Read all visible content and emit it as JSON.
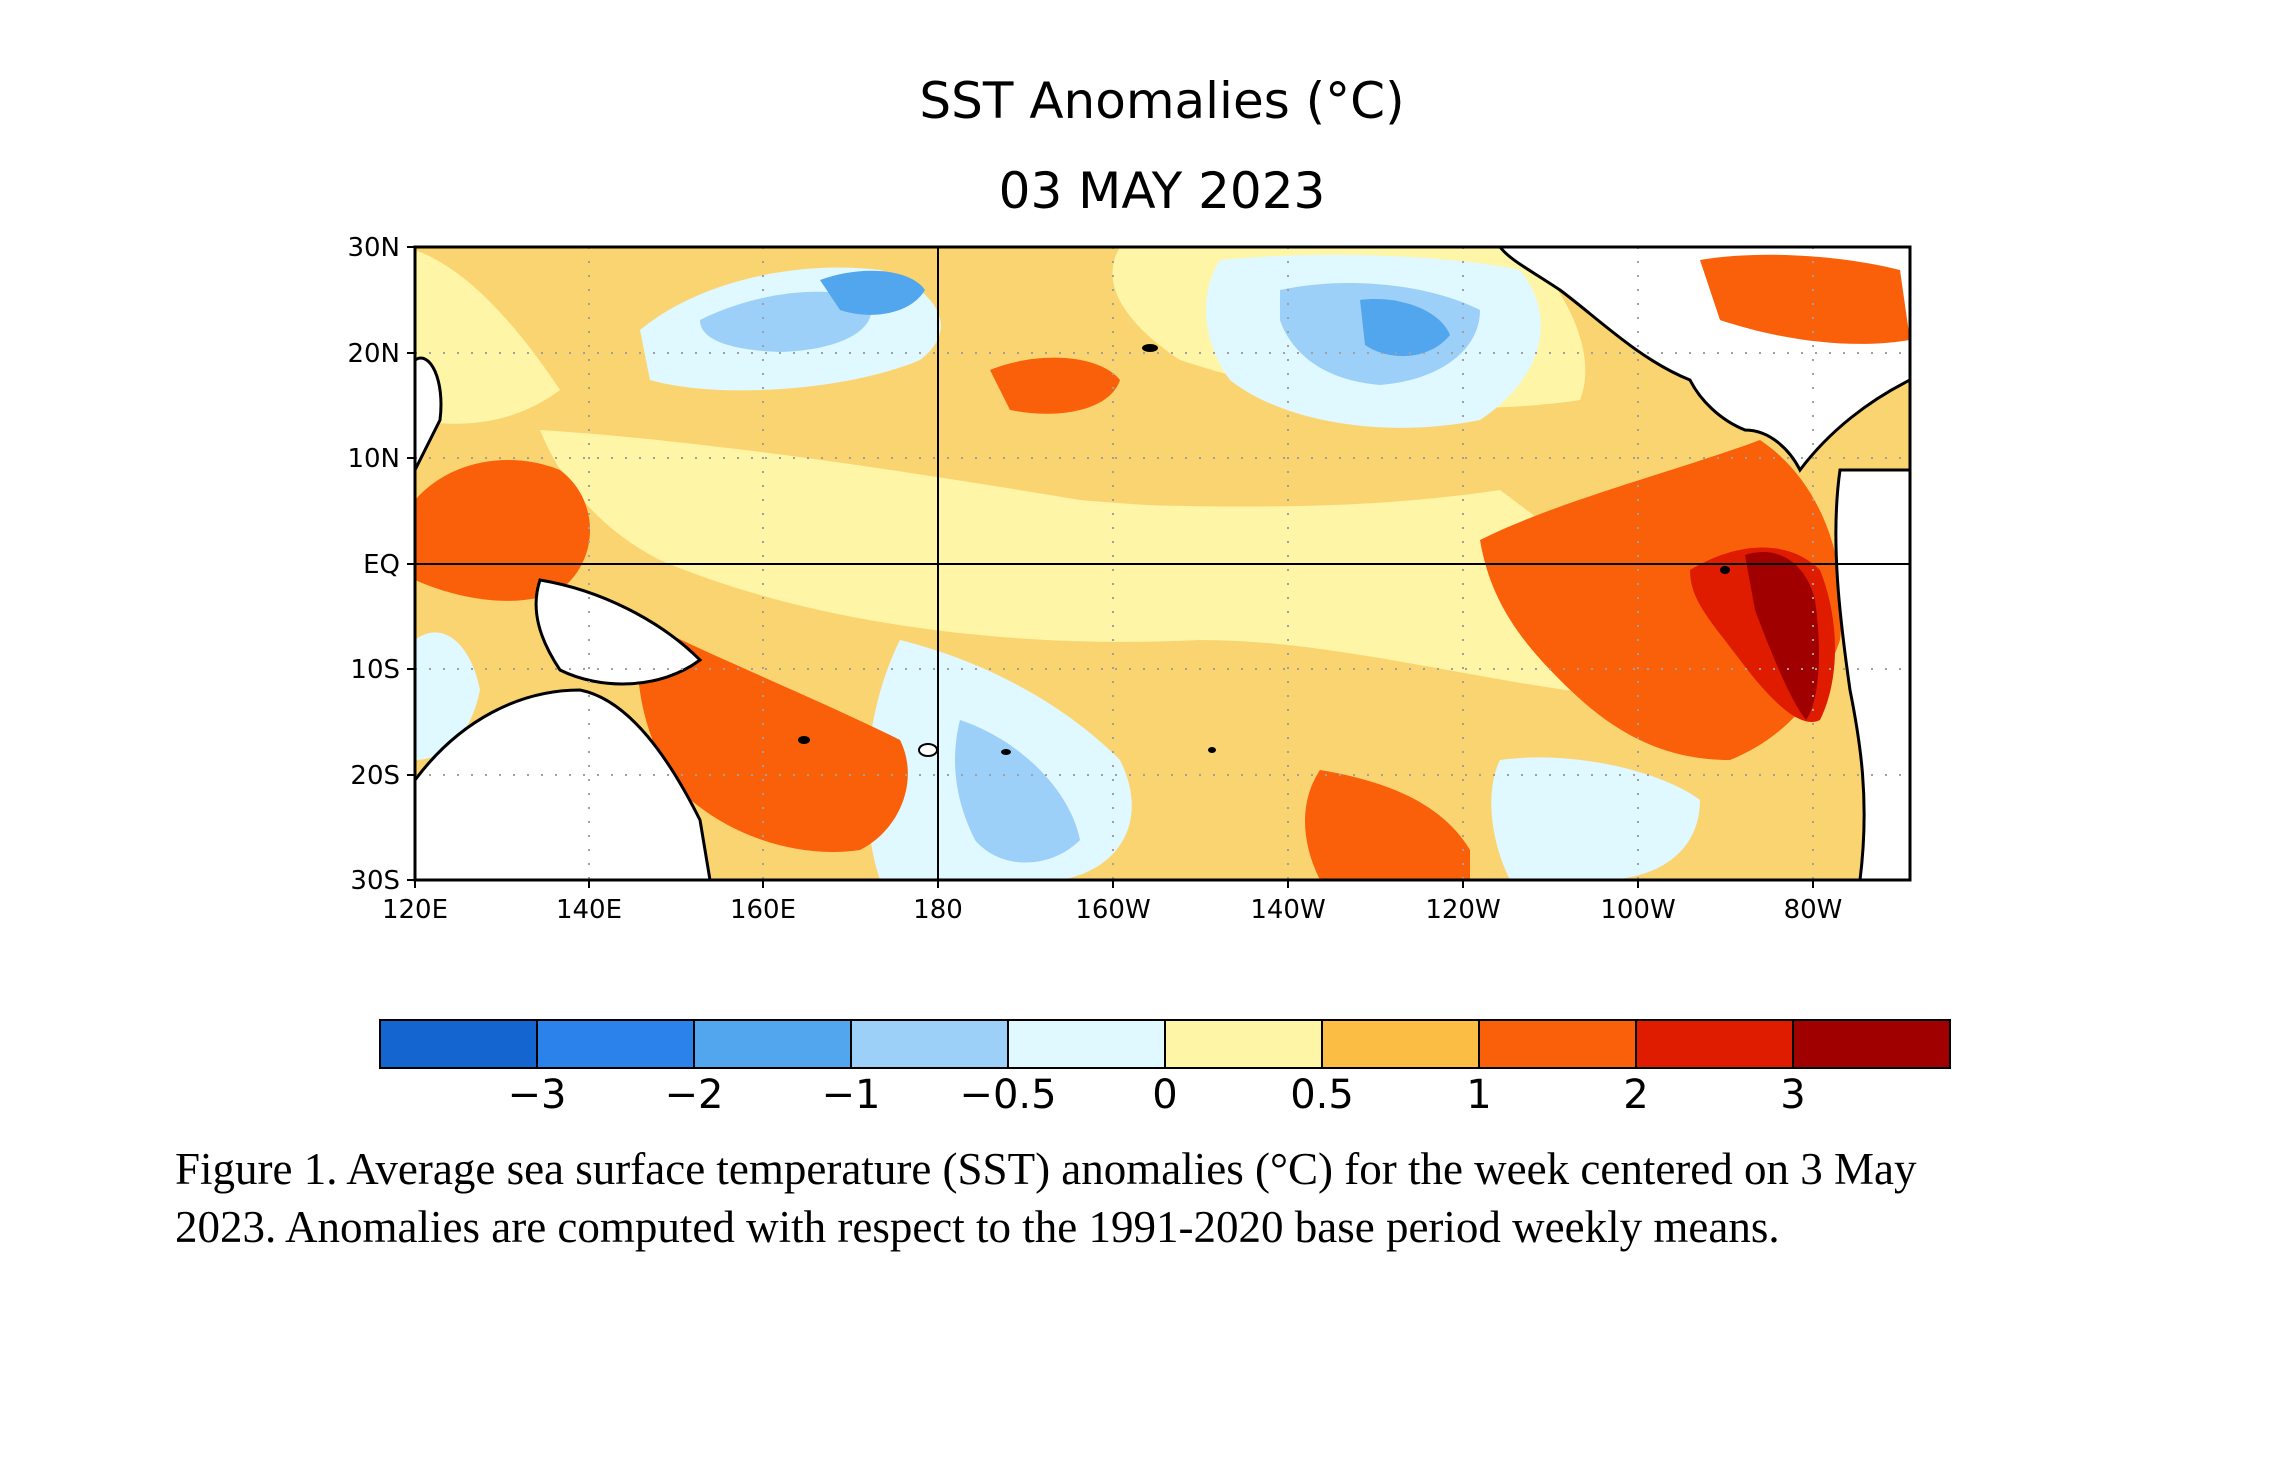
{
  "map": {
    "title": "SST Anomalies (°C)",
    "date": "03 MAY 2023",
    "lat_labels": [
      "30N",
      "20N",
      "10N",
      "EQ",
      "10S",
      "20S",
      "30S"
    ],
    "lon_labels": [
      "120E",
      "140E",
      "160E",
      "180",
      "160W",
      "140W",
      "120W",
      "100W",
      "80W"
    ]
  },
  "colorbar": {
    "colors": [
      "#1565d0",
      "#2a82ea",
      "#52a6ee",
      "#9dd0f8",
      "#e0f8ff",
      "#fff5a6",
      "#fcbd45",
      "#fa5f0a",
      "#df1b00",
      "#a00000"
    ],
    "ticks": [
      "−3",
      "−2",
      "−1",
      "−0.5",
      "0",
      "0.5",
      "1",
      "2",
      "3"
    ]
  },
  "caption": {
    "line1": "Figure 1. Average sea surface temperature (SST) anomalies (°C) for the week centered on 3 May",
    "line2": "2023.  Anomalies are computed with respect to the 1991-2020 base period weekly means."
  }
}
